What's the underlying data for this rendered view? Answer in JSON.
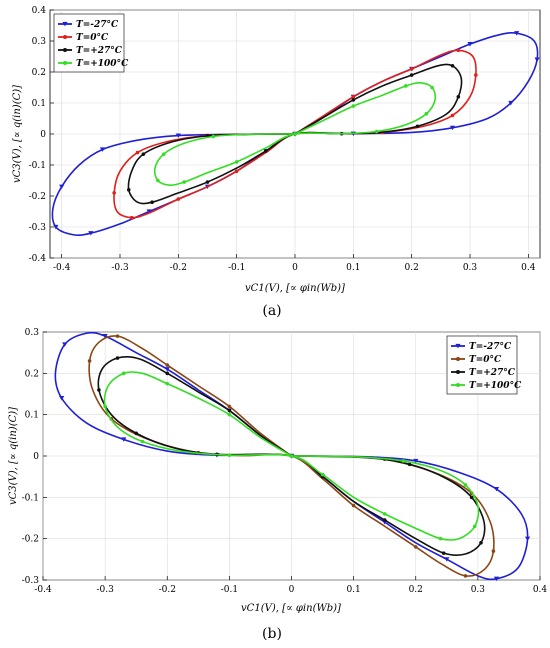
{
  "chart_data": [
    {
      "type": "line",
      "panel_label": "(a)",
      "xlabel": "vC1(V), [∝ φin(Wb)]",
      "ylabel": "vC3(V), [∝ q(in)(C)]",
      "xlim": [
        -0.42,
        0.42
      ],
      "ylim": [
        -0.4,
        0.4
      ],
      "x_ticks": [
        -0.4,
        -0.3,
        -0.2,
        -0.1,
        0,
        0.1,
        0.2,
        0.3,
        0.4
      ],
      "y_ticks": [
        -0.4,
        -0.3,
        -0.2,
        -0.1,
        0,
        0.1,
        0.2,
        0.3,
        0.4
      ],
      "x_tick_labels": [
        "-0.4",
        "-0.3",
        "-0.2",
        "-0.1",
        "0",
        "0.1",
        "0.2",
        "0.3",
        "0.4"
      ],
      "y_tick_labels": [
        "-0.4",
        "-0.3",
        "-0.2",
        "-0.1",
        "0",
        "0.1",
        "0.2",
        "0.3",
        "0.4"
      ],
      "legend_position": "top-left",
      "grid": true,
      "series": [
        {
          "name": "T=-27°C",
          "color": "#1f1fd6",
          "marker": "triangle",
          "upper": [
            [
              0,
              0
            ],
            [
              0.05,
              0.055
            ],
            [
              0.1,
              0.12
            ],
            [
              0.15,
              0.17
            ],
            [
              0.2,
              0.21
            ],
            [
              0.25,
              0.25
            ],
            [
              0.3,
              0.29
            ],
            [
              0.35,
              0.32
            ],
            [
              0.38,
              0.325
            ],
            [
              0.41,
              0.3
            ],
            [
              0.415,
              0.24
            ],
            [
              0.4,
              0.17
            ],
            [
              0.37,
              0.1
            ],
            [
              0.33,
              0.05
            ],
            [
              0.27,
              0.02
            ],
            [
              0.2,
              0.005
            ],
            [
              0.1,
              0.001
            ],
            [
              0,
              0
            ]
          ],
          "lower": [
            [
              0,
              0
            ],
            [
              -0.05,
              -0.055
            ],
            [
              -0.1,
              -0.12
            ],
            [
              -0.15,
              -0.17
            ],
            [
              -0.2,
              -0.21
            ],
            [
              -0.25,
              -0.25
            ],
            [
              -0.3,
              -0.29
            ],
            [
              -0.35,
              -0.32
            ],
            [
              -0.38,
              -0.325
            ],
            [
              -0.41,
              -0.3
            ],
            [
              -0.415,
              -0.24
            ],
            [
              -0.4,
              -0.17
            ],
            [
              -0.37,
              -0.1
            ],
            [
              -0.33,
              -0.05
            ],
            [
              -0.27,
              -0.02
            ],
            [
              -0.2,
              -0.005
            ],
            [
              -0.1,
              -0.001
            ],
            [
              0,
              0
            ]
          ]
        },
        {
          "name": "T=0°C",
          "color": "#e0201c",
          "marker": "dot",
          "upper": [
            [
              0,
              0
            ],
            [
              0.05,
              0.06
            ],
            [
              0.1,
              0.12
            ],
            [
              0.15,
              0.17
            ],
            [
              0.2,
              0.21
            ],
            [
              0.25,
              0.255
            ],
            [
              0.28,
              0.27
            ],
            [
              0.305,
              0.25
            ],
            [
              0.31,
              0.19
            ],
            [
              0.3,
              0.12
            ],
            [
              0.27,
              0.06
            ],
            [
              0.22,
              0.025
            ],
            [
              0.15,
              0.005
            ],
            [
              0.08,
              0.001
            ],
            [
              0,
              0
            ]
          ],
          "lower": [
            [
              0,
              0
            ],
            [
              -0.05,
              -0.06
            ],
            [
              -0.1,
              -0.12
            ],
            [
              -0.15,
              -0.17
            ],
            [
              -0.2,
              -0.21
            ],
            [
              -0.25,
              -0.255
            ],
            [
              -0.28,
              -0.27
            ],
            [
              -0.305,
              -0.25
            ],
            [
              -0.31,
              -0.19
            ],
            [
              -0.3,
              -0.12
            ],
            [
              -0.27,
              -0.06
            ],
            [
              -0.22,
              -0.025
            ],
            [
              -0.15,
              -0.005
            ],
            [
              -0.08,
              -0.001
            ],
            [
              0,
              0
            ]
          ]
        },
        {
          "name": "T=+27°C",
          "color": "#111111",
          "marker": "dot",
          "upper": [
            [
              0,
              0
            ],
            [
              0.05,
              0.055
            ],
            [
              0.1,
              0.11
            ],
            [
              0.15,
              0.155
            ],
            [
              0.2,
              0.19
            ],
            [
              0.245,
              0.22
            ],
            [
              0.27,
              0.22
            ],
            [
              0.285,
              0.18
            ],
            [
              0.28,
              0.12
            ],
            [
              0.26,
              0.065
            ],
            [
              0.21,
              0.025
            ],
            [
              0.15,
              0.006
            ],
            [
              0.08,
              0.001
            ],
            [
              0,
              0
            ]
          ],
          "lower": [
            [
              0,
              0
            ],
            [
              -0.05,
              -0.055
            ],
            [
              -0.1,
              -0.11
            ],
            [
              -0.15,
              -0.155
            ],
            [
              -0.2,
              -0.19
            ],
            [
              -0.245,
              -0.22
            ],
            [
              -0.27,
              -0.22
            ],
            [
              -0.285,
              -0.18
            ],
            [
              -0.28,
              -0.12
            ],
            [
              -0.26,
              -0.065
            ],
            [
              -0.21,
              -0.025
            ],
            [
              -0.15,
              -0.006
            ],
            [
              -0.08,
              -0.001
            ],
            [
              0,
              0
            ]
          ]
        },
        {
          "name": "T=+100°C",
          "color": "#33dd22",
          "marker": "dot",
          "upper": [
            [
              0,
              0
            ],
            [
              0.05,
              0.045
            ],
            [
              0.1,
              0.09
            ],
            [
              0.15,
              0.125
            ],
            [
              0.19,
              0.155
            ],
            [
              0.215,
              0.165
            ],
            [
              0.235,
              0.15
            ],
            [
              0.24,
              0.11
            ],
            [
              0.225,
              0.065
            ],
            [
              0.19,
              0.03
            ],
            [
              0.14,
              0.008
            ],
            [
              0.08,
              0.001
            ],
            [
              0,
              0
            ]
          ],
          "lower": [
            [
              0,
              0
            ],
            [
              -0.05,
              -0.045
            ],
            [
              -0.1,
              -0.09
            ],
            [
              -0.15,
              -0.125
            ],
            [
              -0.19,
              -0.155
            ],
            [
              -0.215,
              -0.165
            ],
            [
              -0.235,
              -0.15
            ],
            [
              -0.24,
              -0.11
            ],
            [
              -0.225,
              -0.065
            ],
            [
              -0.19,
              -0.03
            ],
            [
              -0.14,
              -0.008
            ],
            [
              -0.08,
              -0.001
            ],
            [
              0,
              0
            ]
          ]
        }
      ]
    },
    {
      "type": "line",
      "panel_label": "(b)",
      "xlabel": "vC1(V), [∝ φin(Wb)]",
      "ylabel": "vC3(V), [∝ q(in)(C)]",
      "xlim": [
        -0.4,
        0.4
      ],
      "ylim": [
        -0.3,
        0.3
      ],
      "x_ticks": [
        -0.4,
        -0.3,
        -0.2,
        -0.1,
        0,
        0.1,
        0.2,
        0.3,
        0.4
      ],
      "y_ticks": [
        -0.3,
        -0.2,
        -0.1,
        0,
        0.1,
        0.2,
        0.3
      ],
      "x_tick_labels": [
        "-0.4",
        "-0.3",
        "-0.2",
        "-0.1",
        "0",
        "0.1",
        "0.2",
        "0.3",
        "0.4"
      ],
      "y_tick_labels": [
        "-0.3",
        "-0.2",
        "-0.1",
        "0",
        "0.1",
        "0.2",
        "0.3"
      ],
      "legend_position": "top-right",
      "grid": true,
      "series": [
        {
          "name": "T=-27°C",
          "color": "#1f1fd6",
          "marker": "triangle",
          "upper": [
            [
              0,
              0
            ],
            [
              -0.05,
              0.05
            ],
            [
              -0.1,
              0.11
            ],
            [
              -0.15,
              0.16
            ],
            [
              -0.2,
              0.21
            ],
            [
              -0.25,
              0.25
            ],
            [
              -0.3,
              0.29
            ],
            [
              -0.33,
              0.297
            ],
            [
              -0.365,
              0.27
            ],
            [
              -0.38,
              0.2
            ],
            [
              -0.37,
              0.14
            ],
            [
              -0.33,
              0.08
            ],
            [
              -0.27,
              0.04
            ],
            [
              -0.2,
              0.012
            ],
            [
              -0.12,
              0.002
            ],
            [
              0,
              0
            ]
          ],
          "lower": [
            [
              0,
              0
            ],
            [
              0.05,
              -0.05
            ],
            [
              0.1,
              -0.11
            ],
            [
              0.15,
              -0.16
            ],
            [
              0.2,
              -0.21
            ],
            [
              0.25,
              -0.25
            ],
            [
              0.3,
              -0.29
            ],
            [
              0.33,
              -0.297
            ],
            [
              0.365,
              -0.27
            ],
            [
              0.38,
              -0.2
            ],
            [
              0.37,
              -0.14
            ],
            [
              0.33,
              -0.08
            ],
            [
              0.27,
              -0.04
            ],
            [
              0.2,
              -0.012
            ],
            [
              0.12,
              -0.002
            ],
            [
              0,
              0
            ]
          ]
        },
        {
          "name": "T=0°C",
          "color": "#8b4513",
          "marker": "dot",
          "upper": [
            [
              0,
              0
            ],
            [
              -0.05,
              0.055
            ],
            [
              -0.1,
              0.12
            ],
            [
              -0.15,
              0.17
            ],
            [
              -0.2,
              0.22
            ],
            [
              -0.24,
              0.26
            ],
            [
              -0.28,
              0.29
            ],
            [
              -0.31,
              0.275
            ],
            [
              -0.325,
              0.23
            ],
            [
              -0.32,
              0.16
            ],
            [
              -0.29,
              0.09
            ],
            [
              -0.23,
              0.04
            ],
            [
              -0.15,
              0.008
            ],
            [
              -0.08,
              0.001
            ],
            [
              0,
              0
            ]
          ],
          "lower": [
            [
              0,
              0
            ],
            [
              0.05,
              -0.055
            ],
            [
              0.1,
              -0.12
            ],
            [
              0.15,
              -0.17
            ],
            [
              0.2,
              -0.22
            ],
            [
              0.24,
              -0.26
            ],
            [
              0.28,
              -0.29
            ],
            [
              0.31,
              -0.275
            ],
            [
              0.325,
              -0.23
            ],
            [
              0.32,
              -0.16
            ],
            [
              0.29,
              -0.09
            ],
            [
              0.23,
              -0.04
            ],
            [
              0.15,
              -0.008
            ],
            [
              0.08,
              -0.001
            ],
            [
              0,
              0
            ]
          ]
        },
        {
          "name": "T=+27°C",
          "color": "#111111",
          "marker": "dot",
          "upper": [
            [
              0,
              0
            ],
            [
              -0.05,
              0.05
            ],
            [
              -0.1,
              0.11
            ],
            [
              -0.15,
              0.155
            ],
            [
              -0.2,
              0.2
            ],
            [
              -0.245,
              0.235
            ],
            [
              -0.28,
              0.237
            ],
            [
              -0.305,
              0.21
            ],
            [
              -0.31,
              0.16
            ],
            [
              -0.29,
              0.1
            ],
            [
              -0.25,
              0.055
            ],
            [
              -0.19,
              0.02
            ],
            [
              -0.12,
              0.004
            ],
            [
              0,
              0
            ]
          ],
          "lower": [
            [
              0,
              0
            ],
            [
              0.05,
              -0.05
            ],
            [
              0.1,
              -0.11
            ],
            [
              0.15,
              -0.155
            ],
            [
              0.2,
              -0.2
            ],
            [
              0.245,
              -0.235
            ],
            [
              0.28,
              -0.237
            ],
            [
              0.305,
              -0.21
            ],
            [
              0.31,
              -0.16
            ],
            [
              0.29,
              -0.1
            ],
            [
              0.25,
              -0.055
            ],
            [
              0.19,
              -0.02
            ],
            [
              0.12,
              -0.004
            ],
            [
              0,
              0
            ]
          ]
        },
        {
          "name": "T=+100°C",
          "color": "#33dd22",
          "marker": "dot",
          "upper": [
            [
              0,
              0
            ],
            [
              -0.05,
              0.045
            ],
            [
              -0.1,
              0.1
            ],
            [
              -0.15,
              0.14
            ],
            [
              -0.2,
              0.175
            ],
            [
              -0.24,
              0.2
            ],
            [
              -0.27,
              0.2
            ],
            [
              -0.295,
              0.17
            ],
            [
              -0.3,
              0.12
            ],
            [
              -0.28,
              0.07
            ],
            [
              -0.24,
              0.035
            ],
            [
              -0.18,
              0.012
            ],
            [
              -0.1,
              0.002
            ],
            [
              0,
              0
            ]
          ],
          "lower": [
            [
              0,
              0
            ],
            [
              0.05,
              -0.045
            ],
            [
              0.1,
              -0.1
            ],
            [
              0.15,
              -0.14
            ],
            [
              0.2,
              -0.175
            ],
            [
              0.24,
              -0.2
            ],
            [
              0.27,
              -0.2
            ],
            [
              0.295,
              -0.17
            ],
            [
              0.3,
              -0.12
            ],
            [
              0.28,
              -0.07
            ],
            [
              0.24,
              -0.035
            ],
            [
              0.18,
              -0.012
            ],
            [
              0.1,
              -0.002
            ],
            [
              0,
              0
            ]
          ]
        }
      ]
    }
  ]
}
